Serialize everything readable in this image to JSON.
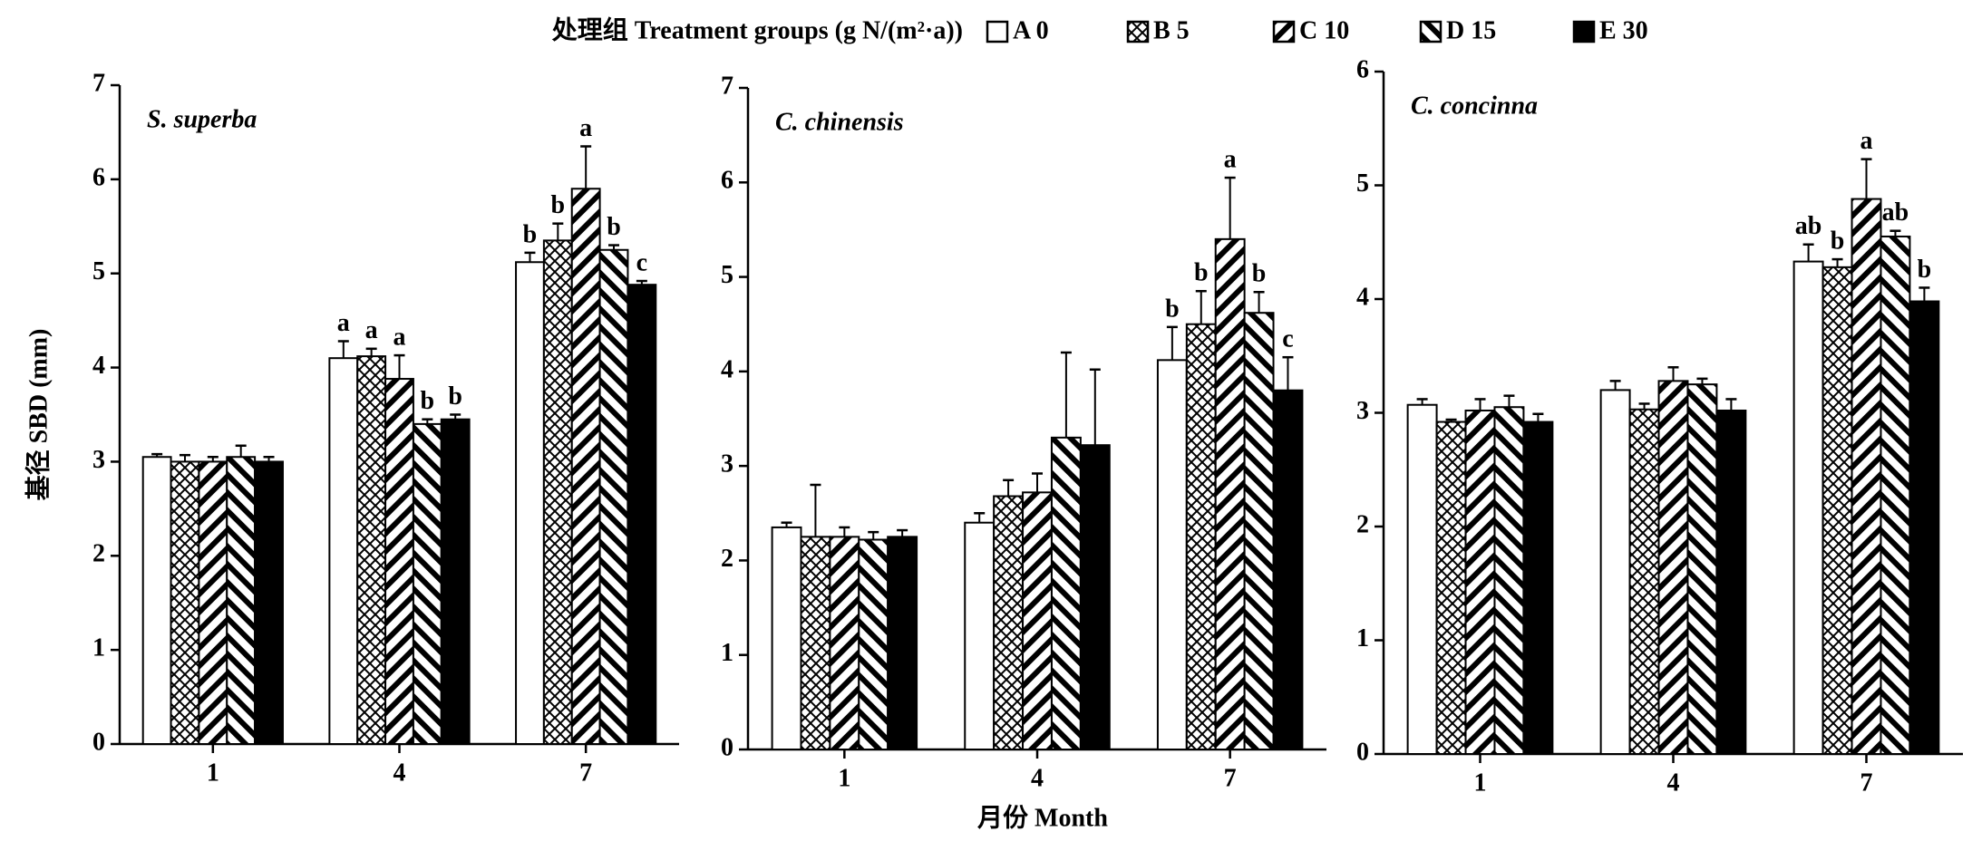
{
  "legend_title": "处理组 Treatment groups (g N/(m²·a))",
  "xlabel": "月份 Month",
  "chart_data": [
    {
      "type": "bar",
      "title": "S. superba",
      "ylabel": "基径 SBD (mm)",
      "categories": [
        "1",
        "4",
        "7"
      ],
      "ylim": [
        0,
        7
      ],
      "yticks": [
        0,
        1,
        2,
        3,
        4,
        5,
        6,
        7
      ],
      "series": [
        {
          "name": "A 0",
          "color": "#ffffff",
          "pattern": "solid",
          "values": [
            3.05,
            4.1,
            5.12
          ],
          "errors": [
            0.03,
            0.18,
            0.1
          ],
          "letters": [
            null,
            "a",
            "b"
          ]
        },
        {
          "name": "B 5",
          "color": "#000000",
          "pattern": "crosshatch",
          "values": [
            3.0,
            4.12,
            5.35
          ],
          "errors": [
            0.07,
            0.08,
            0.18
          ],
          "letters": [
            null,
            "a",
            "b"
          ]
        },
        {
          "name": "C 10",
          "color": "#000000",
          "pattern": "diag-right",
          "values": [
            3.0,
            3.88,
            5.9
          ],
          "errors": [
            0.05,
            0.25,
            0.45
          ],
          "letters": [
            null,
            "a",
            "a"
          ]
        },
        {
          "name": "D 15",
          "color": "#000000",
          "pattern": "diag-left",
          "values": [
            3.05,
            3.4,
            5.25
          ],
          "errors": [
            0.12,
            0.05,
            0.05
          ],
          "letters": [
            null,
            "b",
            "b"
          ]
        },
        {
          "name": "E 30",
          "color": "#000000",
          "pattern": "solid",
          "values": [
            3.0,
            3.45,
            4.88
          ],
          "errors": [
            0.05,
            0.05,
            0.04
          ],
          "letters": [
            null,
            "b",
            "c"
          ]
        }
      ]
    },
    {
      "type": "bar",
      "title": "C. chinensis",
      "categories": [
        "1",
        "4",
        "7"
      ],
      "ylim": [
        0,
        7
      ],
      "yticks": [
        0,
        1,
        2,
        3,
        4,
        5,
        6,
        7
      ],
      "series": [
        {
          "name": "A 0",
          "color": "#ffffff",
          "pattern": "solid",
          "values": [
            2.35,
            2.4,
            4.12
          ],
          "errors": [
            0.05,
            0.1,
            0.35
          ],
          "letters": [
            null,
            null,
            "b"
          ]
        },
        {
          "name": "B 5",
          "color": "#000000",
          "pattern": "crosshatch",
          "values": [
            2.25,
            2.68,
            4.5
          ],
          "errors": [
            0.55,
            0.17,
            0.35
          ],
          "letters": [
            null,
            null,
            "b"
          ]
        },
        {
          "name": "C 10",
          "color": "#000000",
          "pattern": "diag-right",
          "values": [
            2.25,
            2.72,
            5.4
          ],
          "errors": [
            0.1,
            0.2,
            0.65
          ],
          "letters": [
            null,
            null,
            "a"
          ]
        },
        {
          "name": "D 15",
          "color": "#000000",
          "pattern": "diag-left",
          "values": [
            2.22,
            3.3,
            4.62
          ],
          "errors": [
            0.08,
            0.9,
            0.22
          ],
          "letters": [
            null,
            null,
            "b"
          ]
        },
        {
          "name": "E 30",
          "color": "#000000",
          "pattern": "solid",
          "values": [
            2.25,
            3.22,
            3.8
          ],
          "errors": [
            0.07,
            0.8,
            0.35
          ],
          "letters": [
            null,
            null,
            "c"
          ]
        }
      ]
    },
    {
      "type": "bar",
      "title": "C. concinna",
      "categories": [
        "1",
        "4",
        "7"
      ],
      "ylim": [
        0,
        6
      ],
      "yticks": [
        0,
        1,
        2,
        3,
        4,
        5,
        6
      ],
      "series": [
        {
          "name": "A 0",
          "color": "#ffffff",
          "pattern": "solid",
          "values": [
            3.07,
            3.2,
            4.33
          ],
          "errors": [
            0.05,
            0.08,
            0.15
          ],
          "letters": [
            null,
            null,
            "ab"
          ]
        },
        {
          "name": "B 5",
          "color": "#000000",
          "pattern": "crosshatch",
          "values": [
            2.92,
            3.03,
            4.28
          ],
          "errors": [
            0.02,
            0.05,
            0.07
          ],
          "letters": [
            null,
            null,
            "b"
          ]
        },
        {
          "name": "C 10",
          "color": "#000000",
          "pattern": "diag-right",
          "values": [
            3.02,
            3.28,
            4.88
          ],
          "errors": [
            0.1,
            0.12,
            0.35
          ],
          "letters": [
            null,
            null,
            "a"
          ]
        },
        {
          "name": "D 15",
          "color": "#000000",
          "pattern": "diag-left",
          "values": [
            3.05,
            3.25,
            4.55
          ],
          "errors": [
            0.1,
            0.05,
            0.05
          ],
          "letters": [
            null,
            null,
            "ab"
          ]
        },
        {
          "name": "E 30",
          "color": "#000000",
          "pattern": "solid",
          "values": [
            2.92,
            3.02,
            3.98
          ],
          "errors": [
            0.07,
            0.1,
            0.12
          ],
          "letters": [
            null,
            null,
            "b"
          ]
        }
      ]
    }
  ]
}
